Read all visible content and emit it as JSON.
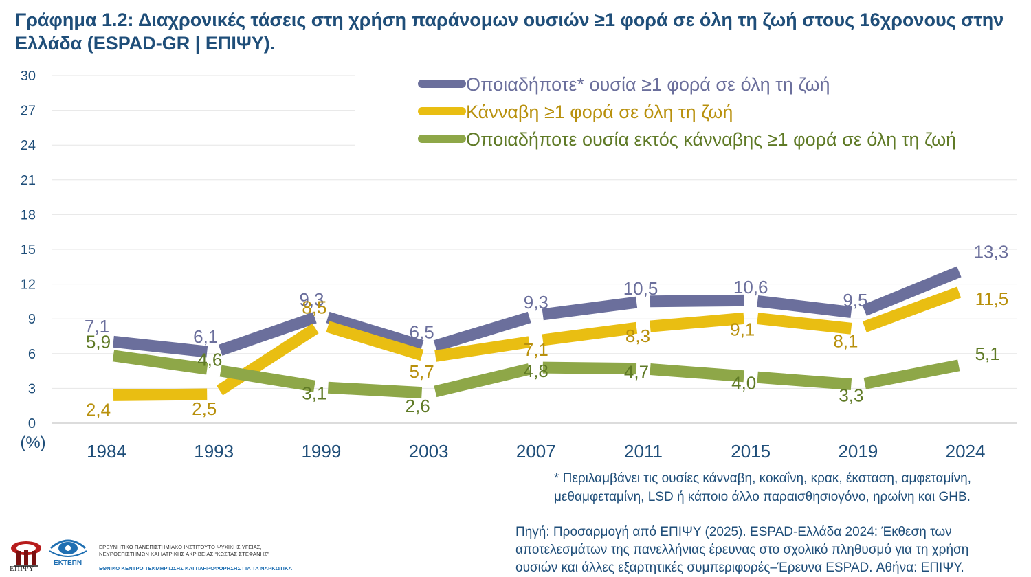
{
  "title": {
    "prefix": "Γράφημα 1.2:",
    "text": "Διαχρονικές τάσεις στη χρήση παράνομων ουσιών ≥1 φορά σε όλη τη ζωή στους 16χρονους στην Ελλάδα (ESPAD-GR | ΕΠΙΨΥ)."
  },
  "footnote": {
    "line1": "* Περιλαμβάνει τις ουσίες κάνναβη, κοκαΐνη, κρακ, έκσταση, αμφεταμίνη,",
    "line2": "μεθαμφεταμίνη, LSD ή κάποιο άλλο παραισθησιογόνο, ηρωίνη και GHB."
  },
  "source": {
    "line1": "Πηγή: Προσαρμογή από ΕΠΙΨΥ (2025). ESPAD-Ελλάδα 2024: Έκθεση των",
    "line2": "αποτελεσμάτων της πανελλήνιας έρευνας στο σχολικό πληθυσμό για τη χρήση",
    "line3": "ουσιών και άλλες εξαρτητικές συμπεριφορές–Έρευνα ESPAD. Αθήνα: ΕΠΙΨΥ."
  },
  "logos": {
    "epipsy_label": "ΕΠΙΨΥ",
    "ektepn_label": "ΕΚΤΕΠΝ",
    "institute_line1": "ΕΡΕΥΝΗΤΙΚΟ ΠΑΝΕΠΙΣΤΗΜΙΑΚΟ ΙΝΣΤΙΤΟΥΤΟ ΨΥΧΙΚΗΣ ΥΓΕΙΑΣ,",
    "institute_line2": "ΝΕΥΡΟΕΠΙΣΤΗΜΩΝ ΚΑΙ ΙΑΤΡΙΚΗΣ ΑΚΡΙΒΕΙΑΣ “ΚΩΣΤΑΣ ΣΤΕΦΑΝΗΣ”",
    "institute_line3": "ΕΘΝΙΚΟ ΚΕΝΤΡΟ ΤΕΚΜΗΡΙΩΣΗΣ ΚΑΙ ΠΛΗΡΟΦΟΡΗΣΗΣ ΓΙΑ ΤΑ ΝΑΡΚΩΤΙΚΑ"
  },
  "chart_data": {
    "type": "line",
    "categories": [
      "1984",
      "1993",
      "1999",
      "2003",
      "2007",
      "2011",
      "2015",
      "2019",
      "2024"
    ],
    "ylim": [
      0,
      30
    ],
    "yticks": [
      "0",
      "3",
      "6",
      "9",
      "12",
      "15",
      "18",
      "21",
      "24",
      "27",
      "30"
    ],
    "ylabel": "(%)",
    "xlabel": "",
    "grid": true,
    "legend_position": "top-right",
    "series": [
      {
        "name": "Οποιαδήποτε* ουσία ≥1 φορά σε όλη τη ζωή",
        "color": "#6b6f9c",
        "label_color": "#6b6f9c",
        "values": [
          7.1,
          6.1,
          9.3,
          6.5,
          9.3,
          10.5,
          10.6,
          9.5,
          13.3
        ],
        "labels": [
          "7,1",
          "6,1",
          "9,3",
          "6,5",
          "9,3",
          "10,5",
          "10,6",
          "9,5",
          "13,3"
        ]
      },
      {
        "name": "Κάνναβη ≥1 φορά σε όλη τη ζωή",
        "color": "#e9be12",
        "label_color": "#b8900c",
        "values": [
          2.4,
          2.5,
          8.5,
          5.7,
          7.1,
          8.3,
          9.1,
          8.1,
          11.5
        ],
        "labels": [
          "2,4",
          "2,5",
          "8,5",
          "5,7",
          "7,1",
          "8,3",
          "9,1",
          "8,1",
          "11,5"
        ]
      },
      {
        "name": "Οποιαδήποτε ουσία εκτός κάνναβης ≥1 φορά σε όλη τη ζωή",
        "color": "#8ea748",
        "label_color": "#5f7a26",
        "values": [
          5.9,
          4.6,
          3.1,
          2.6,
          4.8,
          4.7,
          4.0,
          3.3,
          5.1
        ],
        "labels": [
          "5,9",
          "4,6",
          "3,1",
          "2,6",
          "4,8",
          "4,7",
          "4,0",
          "3,3",
          "5,1"
        ]
      }
    ]
  }
}
